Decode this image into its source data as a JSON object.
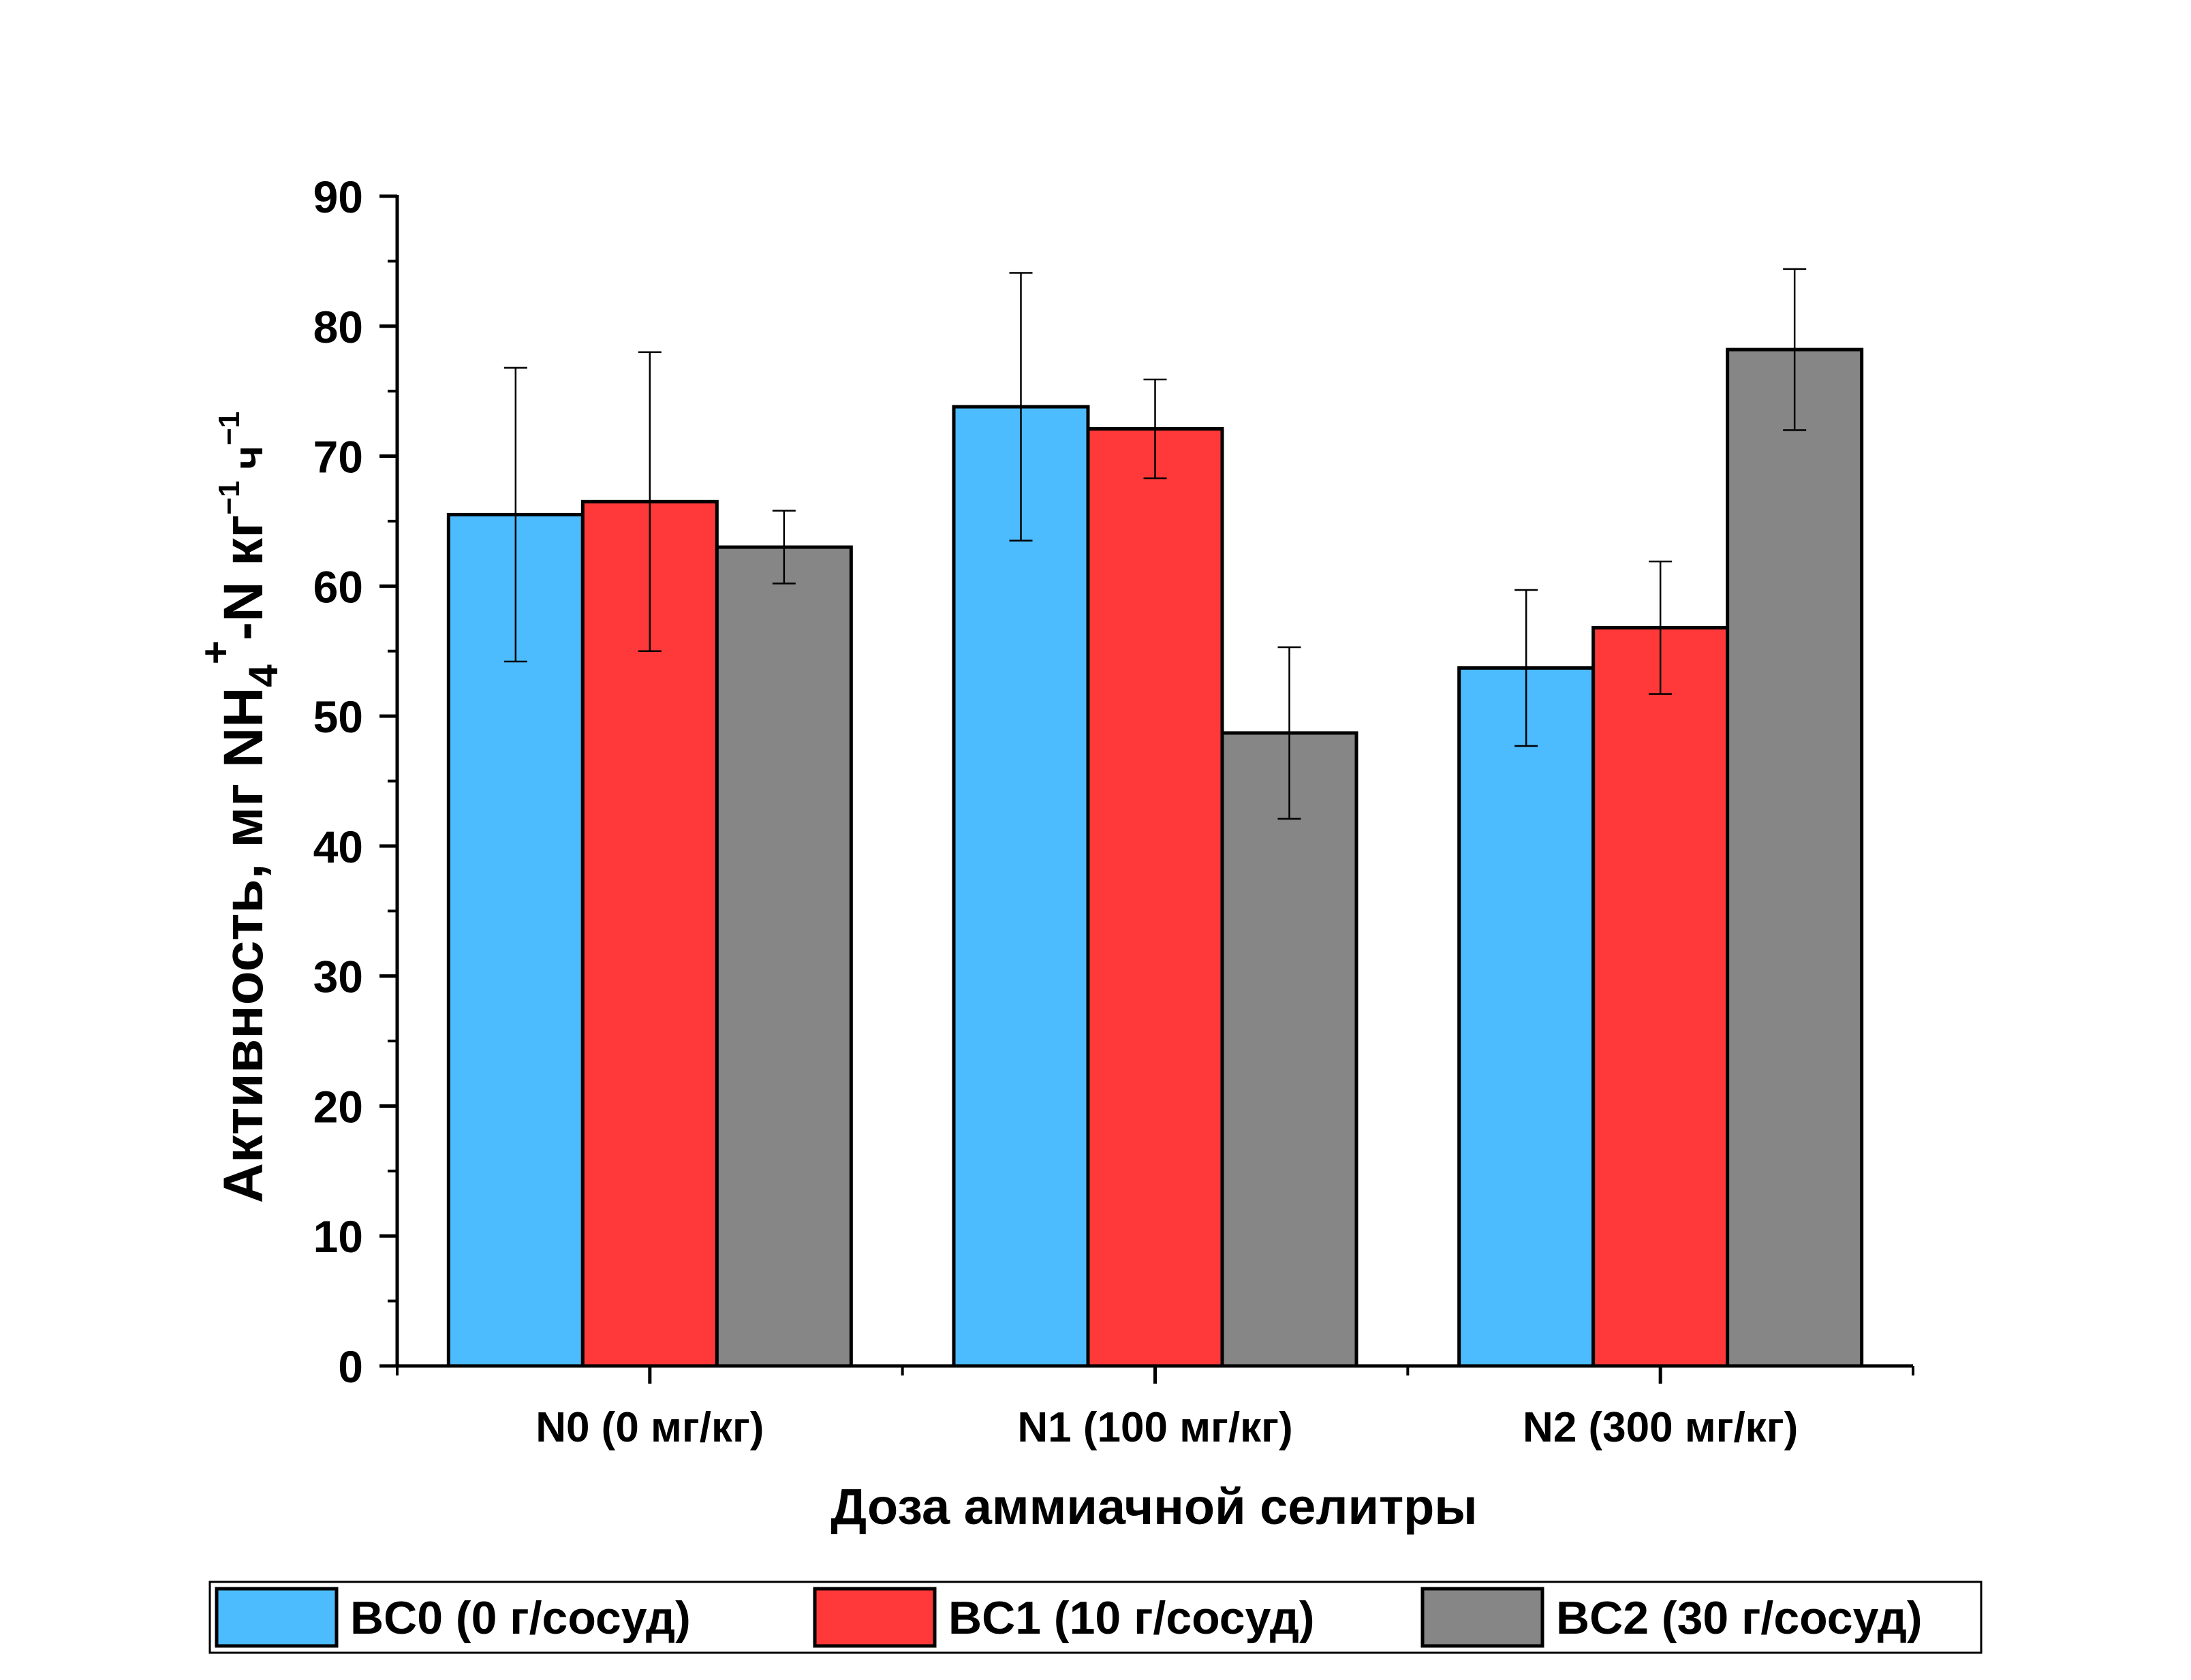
{
  "chart_data": {
    "type": "bar",
    "categories": [
      "N0 (0 мг/кг)",
      "N1 (100 мг/кг)",
      "N2 (300 мг/кг)"
    ],
    "series": [
      {
        "name": "BC0 (0 г/сосуд)",
        "color": "#4cbcff",
        "values": [
          65.5,
          73.8,
          53.7
        ],
        "errors": [
          11.3,
          10.3,
          6.0
        ]
      },
      {
        "name": "BC1 (10 г/сосуд)",
        "color": "#ff3939",
        "values": [
          66.5,
          72.1,
          56.8
        ],
        "errors": [
          11.5,
          3.8,
          5.1
        ]
      },
      {
        "name": "BC2 (30 г/сосуд)",
        "color": "#868686",
        "values": [
          63.0,
          48.7,
          78.2
        ],
        "errors": [
          2.8,
          6.6,
          6.2
        ]
      }
    ],
    "xlabel": "Доза аммиачной селитры",
    "ylabel": {
      "prefix": "Активность, мг NH",
      "sub": "4",
      "sup": "+",
      "mid": "-N кг",
      "sup2": "−1",
      "mid2": " ч",
      "sup3": "−1"
    },
    "ylim": [
      0,
      90
    ],
    "yticks": [
      0,
      10,
      20,
      30,
      40,
      50,
      60,
      70,
      80,
      90
    ],
    "grid": false,
    "legend_position": "bottom"
  }
}
